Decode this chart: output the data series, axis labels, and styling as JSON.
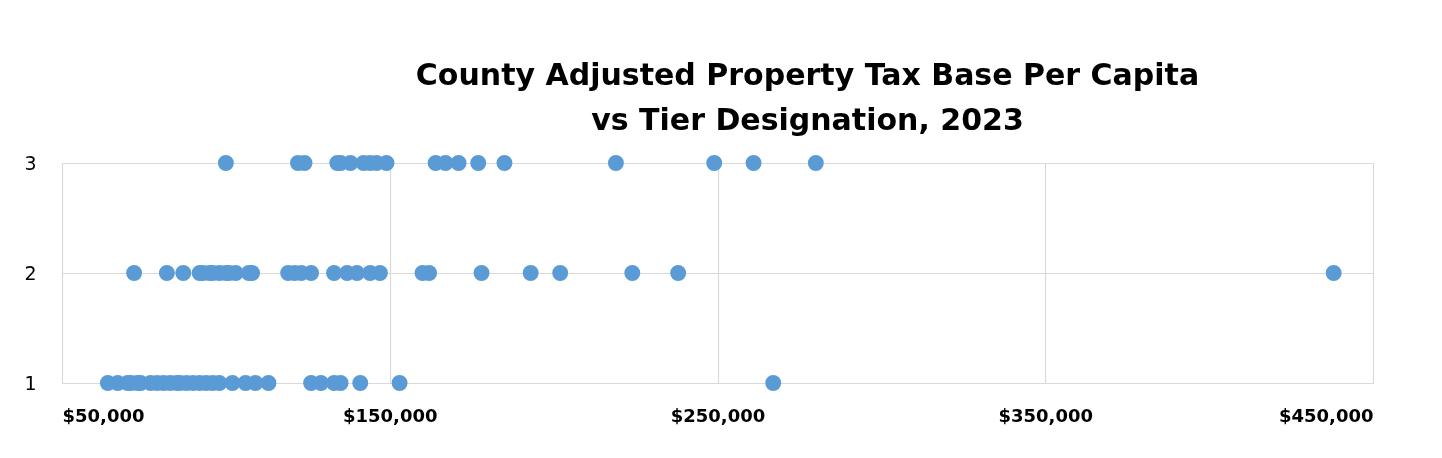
{
  "chart_data": {
    "type": "scatter",
    "title": "County Adjusted Property Tax Base Per Capita\nvs Tier Designation, 2023",
    "x": [
      100000,
      122000,
      124000,
      134000,
      135000,
      138000,
      142000,
      144000,
      146000,
      149000,
      164000,
      167000,
      171000,
      177000,
      185000,
      219000,
      249000,
      261000,
      280000,
      72000,
      82000,
      87000,
      92000,
      93000,
      95000,
      96000,
      98000,
      100000,
      101000,
      103000,
      107000,
      108000,
      119000,
      121000,
      123000,
      126000,
      133000,
      137000,
      140000,
      144000,
      147000,
      160000,
      162000,
      178000,
      193000,
      202000,
      224000,
      238000,
      438000,
      64000,
      67000,
      70000,
      71000,
      73000,
      74000,
      77000,
      79000,
      81000,
      83000,
      85000,
      86000,
      88000,
      90000,
      92000,
      94000,
      96000,
      98000,
      102000,
      106000,
      109000,
      113000,
      126000,
      129000,
      133000,
      135000,
      141000,
      153000,
      267000
    ],
    "values": [
      3,
      3,
      3,
      3,
      3,
      3,
      3,
      3,
      3,
      3,
      3,
      3,
      3,
      3,
      3,
      3,
      3,
      3,
      3,
      2,
      2,
      2,
      2,
      2,
      2,
      2,
      2,
      2,
      2,
      2,
      2,
      2,
      2,
      2,
      2,
      2,
      2,
      2,
      2,
      2,
      2,
      2,
      2,
      2,
      2,
      2,
      2,
      2,
      2,
      1,
      1,
      1,
      1,
      1,
      1,
      1,
      1,
      1,
      1,
      1,
      1,
      1,
      1,
      1,
      1,
      1,
      1,
      1,
      1,
      1,
      1,
      1,
      1,
      1,
      1,
      1,
      1,
      1
    ],
    "color": "#5b9bd5",
    "marker": "circle",
    "xlim": [
      50000,
      450000
    ],
    "xticks": [
      {
        "value": 50000,
        "label": "$50,000"
      },
      {
        "value": 150000,
        "label": "$150,000"
      },
      {
        "value": 250000,
        "label": "$250,000"
      },
      {
        "value": 350000,
        "label": "$350,000"
      },
      {
        "value": 450000,
        "label": "$450,000"
      }
    ],
    "ylim": [
      1,
      3
    ],
    "yticks": [
      1,
      2,
      3
    ],
    "grid": true
  }
}
